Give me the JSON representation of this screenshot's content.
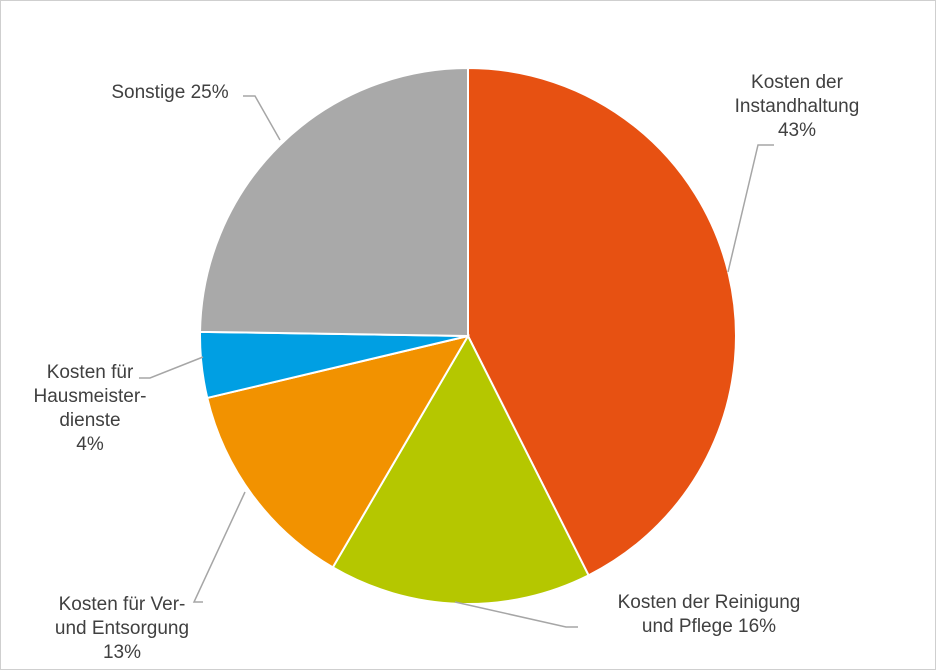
{
  "chart_data": {
    "type": "pie",
    "slices": [
      {
        "label_lines": [
          "Kosten der",
          "Instandhaltung",
          "43%"
        ],
        "value": 43,
        "color": "#E75112"
      },
      {
        "label_lines": [
          "Kosten der Reinigung",
          "und  Pflege  16%"
        ],
        "value": 16,
        "color": "#B5C700"
      },
      {
        "label_lines": [
          "Kosten für Ver-",
          "und  Entsorgung",
          "13%"
        ],
        "value": 13,
        "color": "#F29200"
      },
      {
        "label_lines": [
          "Kosten für",
          "Hausmeister-",
          "dienste",
          "4%"
        ],
        "value": 4,
        "color": "#009FE3"
      },
      {
        "label_lines": [
          "Sonstige 25%"
        ],
        "value": 25,
        "color": "#A9A9A9"
      }
    ],
    "start": "12 o'clock",
    "direction": "clockwise"
  }
}
